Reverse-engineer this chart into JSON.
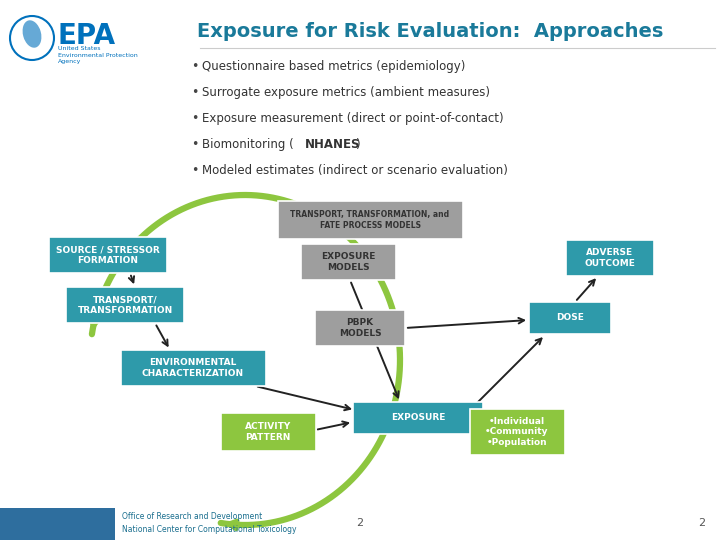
{
  "title": "Exposure for Risk Evaluation:  Approaches",
  "title_color": "#1a7a9a",
  "title_fontsize": 14,
  "bullet_points": [
    "Questionnaire based metrics (epidemiology)",
    "Surrogate exposure metrics (ambient measures)",
    "Exposure measurement (direct or point-of-contact)",
    "Biomonitoring (NHANES)",
    "Modeled estimates (indirect or scenario evaluation)"
  ],
  "bg_color": "#ffffff",
  "teal_color": "#2e9aaa",
  "gray_color": "#8a8a8a",
  "green_color": "#8dc63f",
  "epa_blue": "#0071bc",
  "footer_blue": "#1a6e8e",
  "slide_num": "2",
  "footer_text1": "Office of Research and Development",
  "footer_text2": "National Center for Computational Toxicology"
}
